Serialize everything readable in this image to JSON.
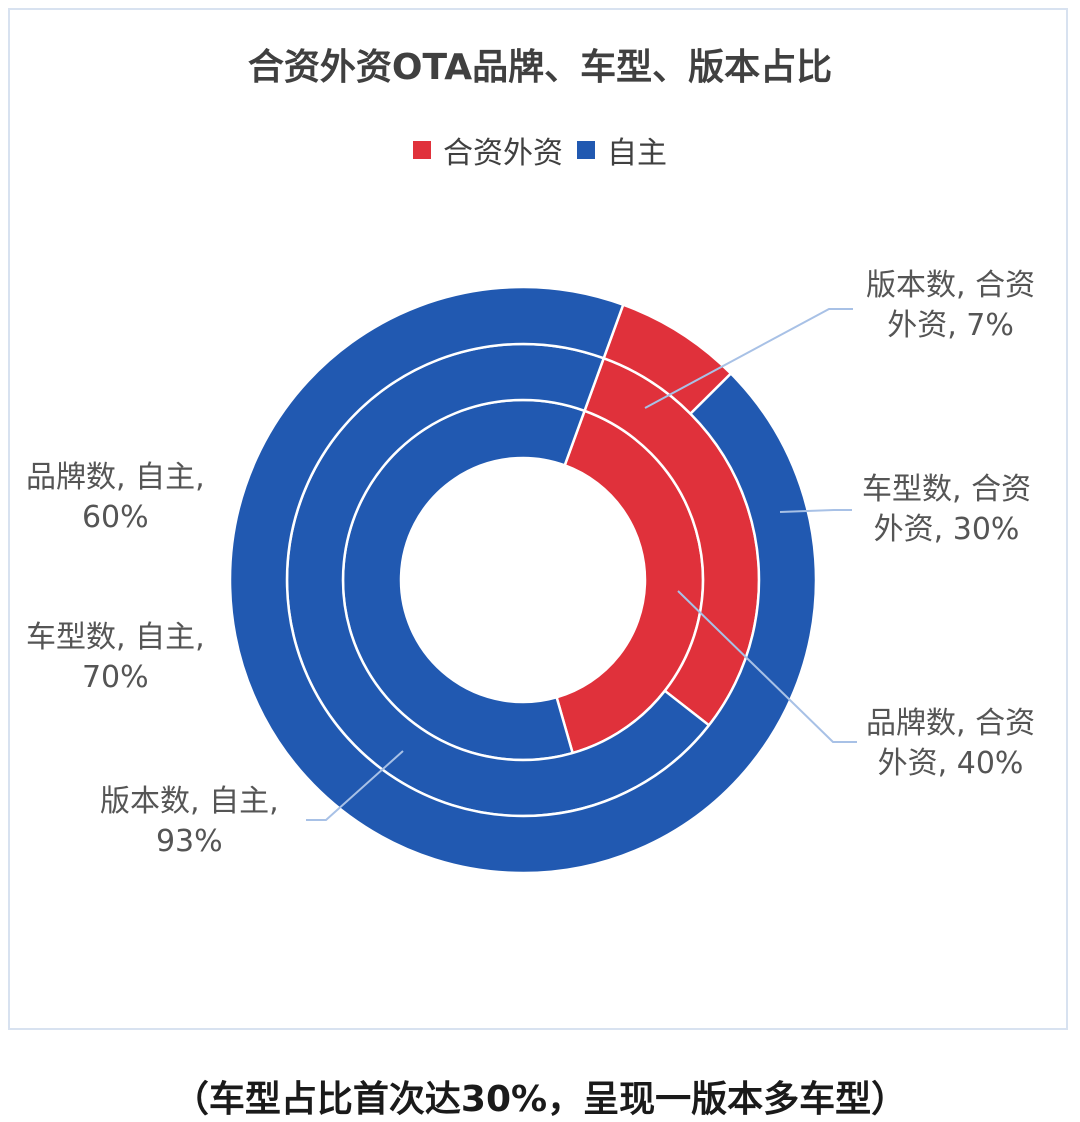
{
  "chart_data": {
    "type": "doughnut",
    "title": "合资外资OTA品牌、车型、版本占比",
    "legend": {
      "position": "top",
      "entries": [
        "合资外资",
        "自主"
      ]
    },
    "colors": {
      "合资外资": "#e0313b",
      "自主": "#2159b1"
    },
    "rings": [
      {
        "name": "品牌数",
        "values": {
          "合资外资": 40,
          "自主": 60
        }
      },
      {
        "name": "车型数",
        "values": {
          "合资外资": 30,
          "自主": 70
        }
      },
      {
        "name": "版本数",
        "values": {
          "合资外资": 7,
          "自主": 93
        }
      }
    ],
    "data_labels": {
      "brand_foreign": [
        "品牌数, 合资",
        "外资, 40%"
      ],
      "model_foreign": [
        "车型数, 合资",
        "外资, 30%"
      ],
      "version_foreign": [
        "版本数, 合资",
        "外资, 7%"
      ],
      "brand_domestic": [
        "品牌数, 自主,",
        "60%"
      ],
      "model_domestic": [
        "车型数, 自主,",
        "70%"
      ],
      "version_domestic": [
        "版本数, 自主,",
        "93%"
      ]
    }
  },
  "caption": "（车型占比首次达30%，呈现一版本多车型）"
}
